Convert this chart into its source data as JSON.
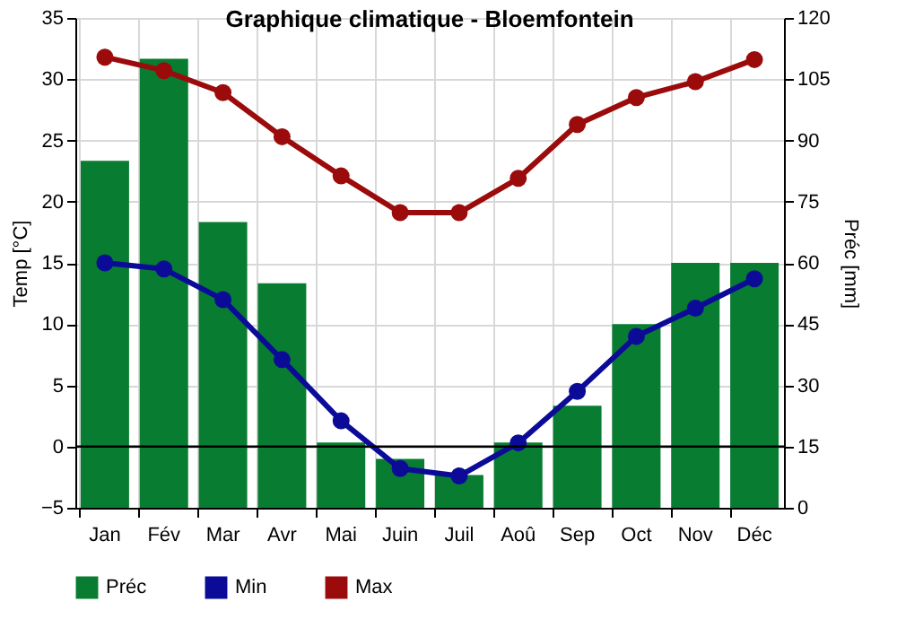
{
  "chart_data": {
    "type": "bar",
    "title": "Graphique climatique - Bloemfontein",
    "ylabel": "Temp [°C]",
    "y2label": "Préc [mm]",
    "categories": [
      "Jan",
      "Fév",
      "Mar",
      "Avr",
      "Mai",
      "Juin",
      "Juil",
      "Aoû",
      "Sep",
      "Oct",
      "Nov",
      "Déc"
    ],
    "series": [
      {
        "name": "Préc",
        "type": "bar",
        "axis": "y2",
        "color": "#087c31",
        "values": [
          85,
          110,
          70,
          55,
          16,
          12,
          8,
          16,
          25,
          45,
          60,
          60
        ]
      },
      {
        "name": "Min",
        "type": "line",
        "color": "#0b0b98",
        "values": [
          15.0,
          14.5,
          12.0,
          7.1,
          2.1,
          -1.8,
          -2.4,
          0.3,
          4.5,
          9.0,
          11.3,
          13.7
        ]
      },
      {
        "name": "Max",
        "type": "line",
        "color": "#9b0b0b",
        "values": [
          31.8,
          30.7,
          28.9,
          25.3,
          22.1,
          19.1,
          19.1,
          21.9,
          26.3,
          28.5,
          29.8,
          31.6
        ]
      }
    ],
    "ylim": [
      -5,
      35
    ],
    "yticks": [
      -5,
      0,
      5,
      10,
      15,
      20,
      25,
      30,
      35
    ],
    "y2lim": [
      0,
      120
    ],
    "y2ticks": [
      0,
      15,
      30,
      45,
      60,
      75,
      90,
      105,
      120
    ],
    "ref_lines": [
      {
        "axis": "y",
        "value": 0,
        "color": "#000000"
      }
    ],
    "grid": true,
    "legend": "bottom left",
    "marker": "circle",
    "line_style": "solid"
  }
}
